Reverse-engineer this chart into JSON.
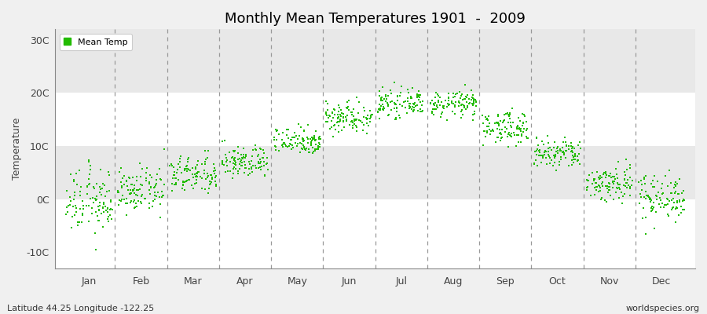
{
  "title": "Monthly Mean Temperatures 1901  -  2009",
  "ylabel": "Temperature",
  "xlabel_labels": [
    "Jan",
    "Feb",
    "Mar",
    "Apr",
    "May",
    "Jun",
    "Jul",
    "Aug",
    "Sep",
    "Oct",
    "Nov",
    "Dec"
  ],
  "ytick_labels": [
    "-10C",
    "0C",
    "10C",
    "20C",
    "30C"
  ],
  "ytick_values": [
    -10,
    0,
    10,
    20,
    30
  ],
  "ylim": [
    -13,
    32
  ],
  "dot_color": "#22bb00",
  "dot_size": 3,
  "background_color": "#f0f0f0",
  "plot_bg_color": "#f0f0f0",
  "grid_color": "#aaaaaa",
  "subtitle": "Latitude 44.25 Longitude -122.25",
  "watermark": "worldspecies.org",
  "legend_label": "Mean Temp",
  "n_years": 109,
  "monthly_means": [
    -0.5,
    1.5,
    4.5,
    7.0,
    11.0,
    15.5,
    18.0,
    18.0,
    13.5,
    8.5,
    3.0,
    0.5
  ],
  "monthly_stds": [
    3.0,
    2.0,
    1.8,
    1.5,
    1.3,
    1.5,
    1.2,
    1.2,
    1.5,
    1.5,
    1.8,
    2.2
  ],
  "band_colors": [
    "#ffffff",
    "#e8e8e8"
  ],
  "spine_color": "#888888"
}
